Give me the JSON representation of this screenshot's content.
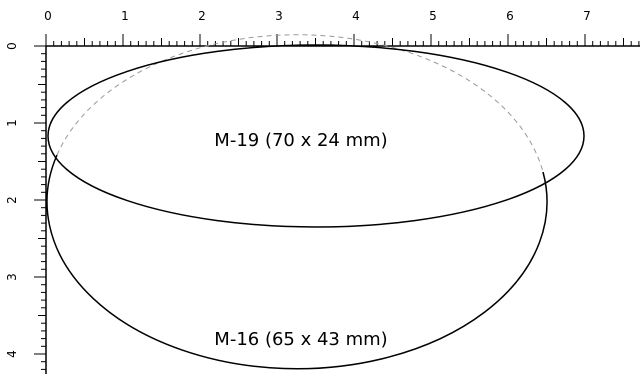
{
  "ruler": {
    "unit": "cm",
    "x_labels": [
      "0",
      "1",
      "2",
      "3",
      "4",
      "5",
      "6",
      "7"
    ],
    "y_labels": [
      "0",
      "1",
      "2",
      "3",
      "4"
    ]
  },
  "shapes": [
    {
      "id": "M-19",
      "label": "M-19 (70 x 24 mm)",
      "width_mm": 70,
      "height_mm": 24,
      "outline": "solid"
    },
    {
      "id": "M-16",
      "label": "M-16 (65 x 43 mm)",
      "width_mm": 65,
      "height_mm": 43,
      "outline": "solid-with-dashed-hidden-top"
    }
  ],
  "colors": {
    "stroke": "#000000",
    "hidden_line": "#999999",
    "background": "#ffffff"
  }
}
